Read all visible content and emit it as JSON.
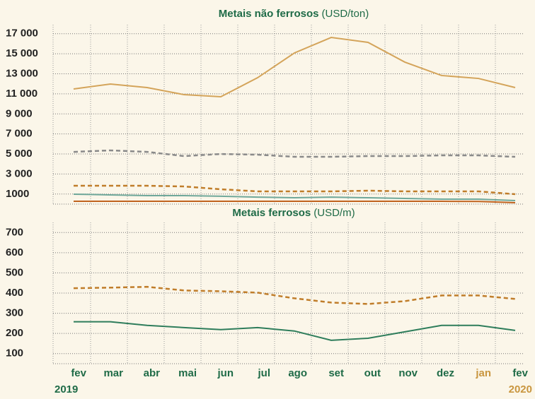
{
  "chart_data": [
    {
      "type": "line",
      "title": "Metais não ferrosos",
      "unit": "(USD/ton)",
      "ylim": [
        0,
        17900
      ],
      "yticks": [
        {
          "value": 1000,
          "label": "1000"
        },
        {
          "value": 3000,
          "label": "3 000"
        },
        {
          "value": 5000,
          "label": "5 000"
        },
        {
          "value": 7000,
          "label": "7 000"
        },
        {
          "value": 9000,
          "label": "9 000"
        },
        {
          "value": 11000,
          "label": "11 000"
        },
        {
          "value": 13000,
          "label": "13 000"
        },
        {
          "value": 15000,
          "label": "15 000"
        },
        {
          "value": 17000,
          "label": "17 000"
        }
      ],
      "grid": true,
      "series": [
        {
          "color": "#d4a45a",
          "dash": false,
          "values": [
            11490,
            11980,
            11630,
            10920,
            10710,
            12610,
            15080,
            16630,
            16140,
            14170,
            12830,
            12540,
            11630
          ]
        },
        {
          "color": "#8a8a8a",
          "dash": true,
          "values": [
            5210,
            5360,
            5210,
            4790,
            5000,
            4930,
            4720,
            4720,
            4790,
            4790,
            4860,
            4860,
            4720
          ]
        },
        {
          "color": "#c07d2a",
          "dash": true,
          "values": [
            1830,
            1830,
            1830,
            1760,
            1480,
            1270,
            1270,
            1270,
            1340,
            1270,
            1270,
            1270,
            990
          ]
        },
        {
          "color": "#6fa89a",
          "dash": false,
          "values": [
            990,
            920,
            850,
            850,
            780,
            700,
            630,
            700,
            630,
            560,
            490,
            490,
            350
          ]
        },
        {
          "color": "#c0621e",
          "dash": false,
          "values": [
            280,
            280,
            280,
            280,
            280,
            280,
            280,
            280,
            280,
            280,
            280,
            260,
            140
          ]
        }
      ]
    },
    {
      "type": "line",
      "title": "Metais ferrosos",
      "unit": "(USD/m)",
      "ylim": [
        50,
        750
      ],
      "yticks": [
        100,
        200,
        300,
        400,
        500,
        600,
        700
      ],
      "grid": true,
      "categories": [
        "fev",
        "mar",
        "abr",
        "mai",
        "jun",
        "jul",
        "ago",
        "set",
        "out",
        "nov",
        "dez",
        "jan",
        "fev"
      ],
      "category_colors": [
        "#1f6b47",
        "#1f6b47",
        "#1f6b47",
        "#1f6b47",
        "#1f6b47",
        "#1f6b47",
        "#1f6b47",
        "#1f6b47",
        "#1f6b47",
        "#1f6b47",
        "#1f6b47",
        "#c9963f",
        "#1f6b47"
      ],
      "years": [
        "2019",
        "2020"
      ],
      "year_colors": [
        "#1f6b47",
        "#c9963f"
      ],
      "series": [
        {
          "color": "#c07d2a",
          "dash": true,
          "values": [
            424,
            427,
            431,
            413,
            409,
            402,
            374,
            353,
            346,
            360,
            388,
            388,
            371
          ]
        },
        {
          "color": "#2e7d5b",
          "dash": false,
          "values": [
            258,
            258,
            240,
            229,
            219,
            229,
            212,
            166,
            176,
            208,
            240,
            240,
            215
          ]
        }
      ]
    }
  ]
}
